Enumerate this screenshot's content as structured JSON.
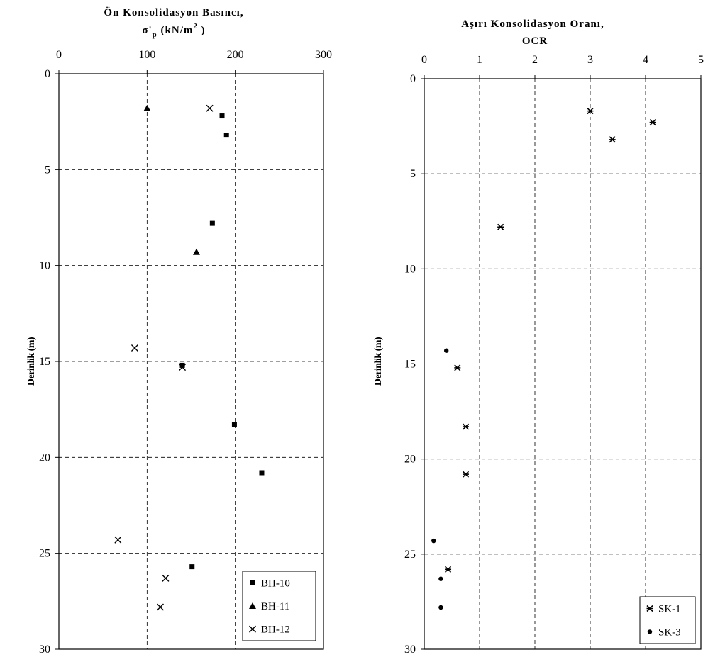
{
  "chart_data": [
    {
      "type": "scatter",
      "title_line1": "Ön Konsolidasyon Basıncı,",
      "title_sigma": "σ'",
      "title_sub": "p",
      "title_rest": " (kN/m",
      "title_sup": "2",
      "title_close": "  )",
      "ylabel": "Derinlik (m)",
      "xlim": [
        0,
        300
      ],
      "ylim": [
        0,
        30
      ],
      "x_axis_position": "top",
      "y_inverted": true,
      "x_ticks": [
        0,
        100,
        200,
        300
      ],
      "y_ticks": [
        0,
        5,
        10,
        15,
        20,
        25,
        30
      ],
      "x_tick_labels": [
        "0",
        "100",
        "200",
        "300"
      ],
      "y_tick_labels": [
        "0",
        "5",
        "10",
        "15",
        "20",
        "25",
        "30"
      ],
      "grid": "dashed",
      "legend_position": "bottom-right",
      "series": [
        {
          "name": "BH-10",
          "marker": "square",
          "points": [
            [
              185,
              2.2
            ],
            [
              190,
              3.2
            ],
            [
              174,
              7.8
            ],
            [
              140,
              15.2
            ],
            [
              199,
              18.3
            ],
            [
              230,
              20.8
            ],
            [
              151,
              25.7
            ]
          ]
        },
        {
          "name": "BH-11",
          "marker": "triangle",
          "points": [
            [
              100,
              1.8
            ],
            [
              156,
              9.3
            ]
          ]
        },
        {
          "name": "BH-12",
          "marker": "x",
          "points": [
            [
              171,
              1.8
            ],
            [
              86,
              14.3
            ],
            [
              140,
              15.3
            ],
            [
              67,
              24.3
            ],
            [
              121,
              26.3
            ],
            [
              115,
              27.8
            ]
          ]
        }
      ]
    },
    {
      "type": "scatter",
      "title_line1": "Aşırı Konsolidasyon Oranı,",
      "title_line2": "OCR",
      "ylabel": "Derinlik (m)",
      "xlim": [
        0,
        5
      ],
      "ylim": [
        0,
        30
      ],
      "x_axis_position": "top",
      "y_inverted": true,
      "x_ticks": [
        0,
        1,
        2,
        3,
        4,
        5
      ],
      "y_ticks": [
        0,
        5,
        10,
        15,
        20,
        25,
        30
      ],
      "x_tick_labels": [
        "0",
        "1",
        "2",
        "3",
        "4",
        "5"
      ],
      "y_tick_labels": [
        "0",
        "5",
        "10",
        "15",
        "20",
        "25",
        "30"
      ],
      "grid": "dashed",
      "legend_position": "bottom-right",
      "series": [
        {
          "name": "SK-1",
          "marker": "asterisk",
          "points": [
            [
              3.0,
              1.7
            ],
            [
              4.13,
              2.3
            ],
            [
              3.4,
              3.2
            ],
            [
              1.38,
              7.8
            ],
            [
              0.6,
              15.2
            ],
            [
              0.75,
              18.3
            ],
            [
              0.75,
              20.8
            ],
            [
              0.43,
              25.8
            ]
          ]
        },
        {
          "name": "SK-3",
          "marker": "circle",
          "points": [
            [
              0.4,
              14.3
            ],
            [
              0.17,
              24.3
            ],
            [
              0.3,
              26.3
            ],
            [
              0.3,
              27.8
            ]
          ]
        }
      ]
    }
  ]
}
